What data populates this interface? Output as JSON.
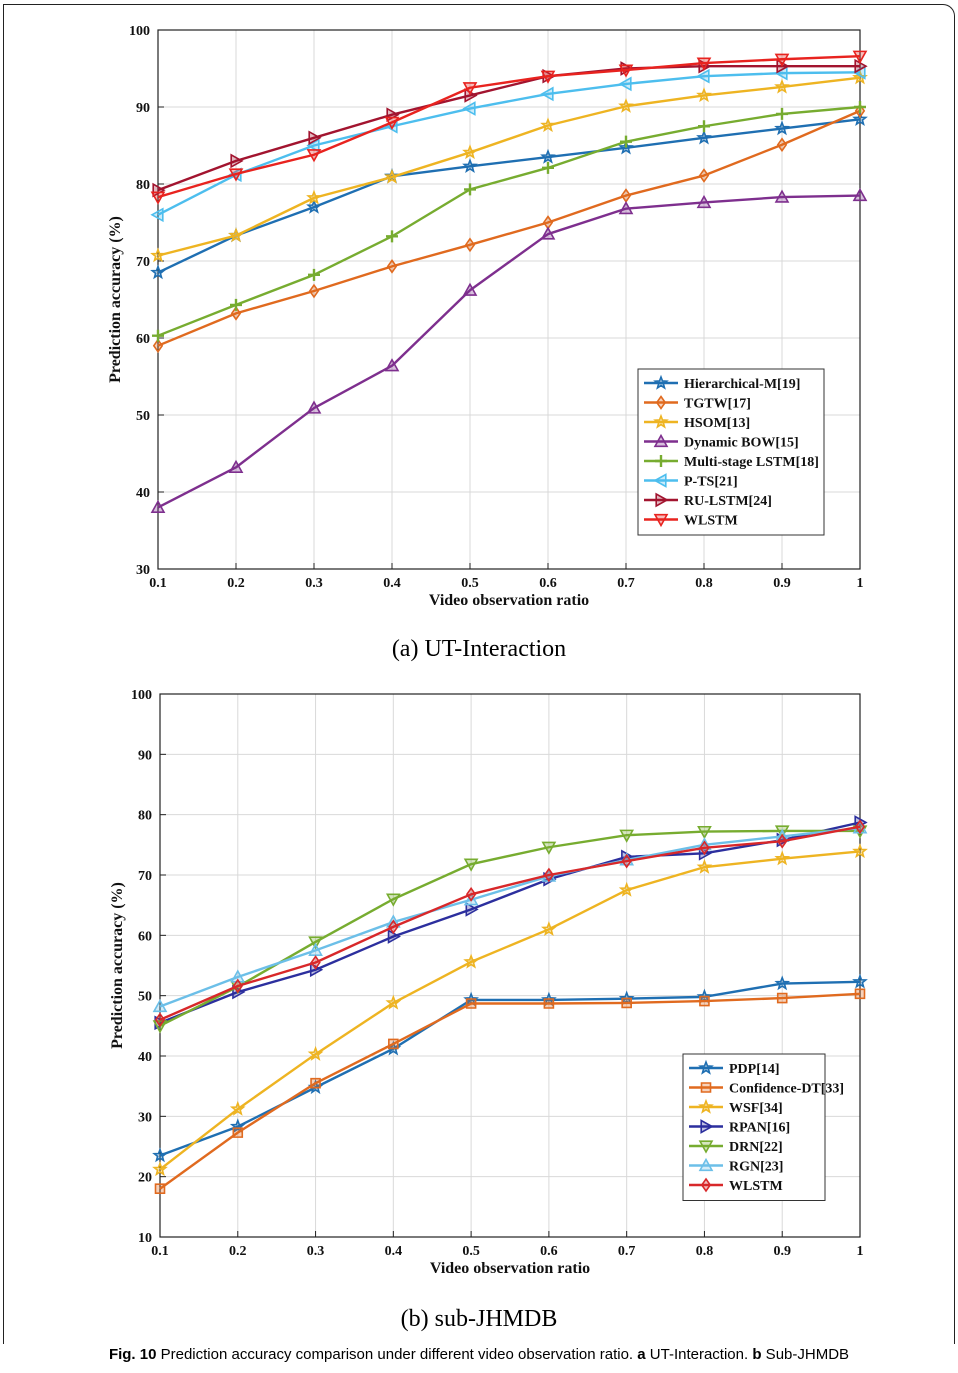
{
  "chart_data": [
    {
      "type": "line",
      "caption": "(a) UT-Interaction",
      "xlabel": "Video observation ratio",
      "ylabel": "Prediction accuracy (%)",
      "xlim": [
        0.1,
        1
      ],
      "ylim": [
        30,
        100
      ],
      "xticks": [
        "0.1",
        "0.2",
        "0.3",
        "0.4",
        "0.5",
        "0.6",
        "0.7",
        "0.8",
        "0.9",
        "1"
      ],
      "yticks": [
        "30",
        "40",
        "50",
        "60",
        "70",
        "80",
        "90",
        "100"
      ],
      "grid": true,
      "legend_position": "bottom-right",
      "x": [
        0.1,
        0.2,
        0.3,
        0.4,
        0.5,
        0.6,
        0.7,
        0.8,
        0.9,
        1.0
      ],
      "series": [
        {
          "name": "Hierarchical-M[19]",
          "color": "#1f6fb2",
          "marker": "star",
          "values": [
            68.5,
            73.3,
            77.0,
            81.0,
            82.3,
            83.5,
            84.7,
            86.0,
            87.2,
            88.4
          ]
        },
        {
          "name": "TGTW[17]",
          "color": "#e06a1f",
          "marker": "diamond",
          "values": [
            59.0,
            63.2,
            66.1,
            69.3,
            72.1,
            75.0,
            78.5,
            81.1,
            85.1,
            89.5
          ]
        },
        {
          "name": "HSOM[13]",
          "color": "#eeb422",
          "marker": "star",
          "values": [
            70.7,
            73.3,
            78.2,
            80.9,
            84.1,
            87.6,
            90.1,
            91.5,
            92.6,
            93.8
          ]
        },
        {
          "name": "Dynamic BOW[15]",
          "color": "#7e2f8e",
          "marker": "triangle-up",
          "values": [
            38.0,
            43.2,
            50.9,
            56.4,
            66.2,
            73.5,
            76.8,
            77.6,
            78.3,
            78.5
          ]
        },
        {
          "name": "Multi-stage LSTM[18]",
          "color": "#77ac30",
          "marker": "plus",
          "values": [
            60.3,
            64.3,
            68.2,
            73.2,
            79.3,
            82.1,
            85.5,
            87.5,
            89.1,
            90.0
          ]
        },
        {
          "name": "P-TS[21]",
          "color": "#4dbeee",
          "marker": "triangle-left",
          "values": [
            76.0,
            81.2,
            85.0,
            87.5,
            89.8,
            91.7,
            93.0,
            94.0,
            94.4,
            94.5
          ]
        },
        {
          "name": "RU-LSTM[24]",
          "color": "#a2142f",
          "marker": "triangle-right",
          "values": [
            79.2,
            83.0,
            86.0,
            89.0,
            91.5,
            94.0,
            95.0,
            95.3,
            95.3,
            95.3
          ]
        },
        {
          "name": "WLSTM",
          "color": "#e8231f",
          "marker": "triangle-down",
          "values": [
            78.3,
            81.3,
            83.8,
            88.0,
            92.5,
            94.0,
            94.8,
            95.7,
            96.2,
            96.6
          ]
        }
      ]
    },
    {
      "type": "line",
      "caption": "(b) sub-JHMDB",
      "xlabel": "Video observation ratio",
      "ylabel": "Prediction accuracy (%)",
      "xlim": [
        0.1,
        1
      ],
      "ylim": [
        10,
        100
      ],
      "xticks": [
        "0.1",
        "0.2",
        "0.3",
        "0.4",
        "0.5",
        "0.6",
        "0.7",
        "0.8",
        "0.9",
        "1"
      ],
      "yticks": [
        "10",
        "20",
        "30",
        "40",
        "50",
        "60",
        "70",
        "80",
        "90",
        "100"
      ],
      "grid": true,
      "legend_position": "bottom-right",
      "x": [
        0.1,
        0.2,
        0.3,
        0.4,
        0.5,
        0.6,
        0.7,
        0.8,
        0.9,
        1.0
      ],
      "series": [
        {
          "name": "PDP[14]",
          "color": "#1f6fb2",
          "marker": "star",
          "values": [
            23.5,
            28.3,
            34.8,
            41.2,
            49.3,
            49.3,
            49.5,
            49.8,
            52.0,
            52.3
          ]
        },
        {
          "name": "Confidence-DT[33]",
          "color": "#e06a1f",
          "marker": "square",
          "values": [
            18.0,
            27.3,
            35.5,
            42.0,
            48.7,
            48.7,
            48.8,
            49.1,
            49.6,
            50.3
          ]
        },
        {
          "name": "WSF[34]",
          "color": "#eeb422",
          "marker": "star",
          "values": [
            21.2,
            31.2,
            40.3,
            48.8,
            55.6,
            61.0,
            67.5,
            71.3,
            72.7,
            73.9
          ]
        },
        {
          "name": "RPAN[16]",
          "color": "#2c2f9e",
          "marker": "triangle-right",
          "values": [
            45.5,
            50.6,
            54.3,
            59.8,
            64.3,
            69.3,
            73.0,
            73.6,
            75.8,
            78.7
          ]
        },
        {
          "name": "DRN[22]",
          "color": "#77ac30",
          "marker": "triangle-down",
          "values": [
            45.0,
            51.5,
            58.9,
            66.0,
            71.8,
            74.6,
            76.6,
            77.2,
            77.3,
            77.3
          ]
        },
        {
          "name": "RGN[23]",
          "color": "#6cbfe8",
          "marker": "triangle-up",
          "values": [
            48.2,
            53.1,
            57.5,
            62.2,
            65.9,
            69.8,
            72.5,
            75.0,
            76.4,
            77.8
          ]
        },
        {
          "name": "WLSTM",
          "color": "#d8282a",
          "marker": "diamond",
          "values": [
            46.0,
            51.6,
            55.5,
            61.4,
            66.8,
            70.0,
            72.3,
            74.5,
            75.6,
            78.0
          ]
        }
      ]
    }
  ],
  "figure_caption": {
    "label": "Fig. 10",
    "text": " Prediction accuracy comparison under different video observation ratio. ",
    "a_label": "a",
    "a_text": " UT-Interaction. ",
    "b_label": "b",
    "b_text": " Sub-JHMDB"
  }
}
